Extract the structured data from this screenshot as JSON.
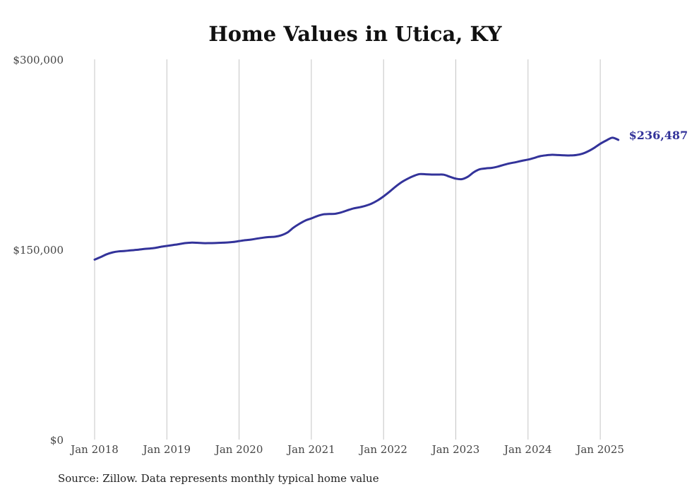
{
  "title": "Home Values in Utica, KY",
  "source": "Source: Zillow. Data represents monthly typical home value",
  "colors": {
    "line": "#33339a",
    "grid": "#c4c4c4",
    "text": "#444444"
  },
  "chart_data": {
    "type": "line",
    "title": "Home Values in Utica, KY",
    "xlabel": "",
    "ylabel": "",
    "ylim": [
      0,
      300000
    ],
    "xlim": [
      "2018-01",
      "2025-12"
    ],
    "y_ticks": [
      0,
      150000,
      300000
    ],
    "y_tick_labels": [
      "$0",
      "$150,000",
      "$300,000"
    ],
    "x_ticks": [
      "2018-01",
      "2019-01",
      "2020-01",
      "2021-01",
      "2022-01",
      "2023-01",
      "2024-01",
      "2025-01"
    ],
    "x_tick_labels": [
      "Jan 2018",
      "Jan 2019",
      "Jan 2020",
      "Jan 2021",
      "Jan 2022",
      "Jan 2023",
      "Jan 2024",
      "Jan 2025"
    ],
    "grid": "vertical",
    "end_label": "$236,487",
    "series": [
      {
        "name": "",
        "color": "#33339a",
        "x": [
          "2018-01",
          "2018-02",
          "2018-03",
          "2018-04",
          "2018-05",
          "2018-06",
          "2018-07",
          "2018-08",
          "2018-09",
          "2018-10",
          "2018-11",
          "2018-12",
          "2019-01",
          "2019-02",
          "2019-03",
          "2019-04",
          "2019-05",
          "2019-06",
          "2019-07",
          "2019-08",
          "2019-09",
          "2019-10",
          "2019-11",
          "2019-12",
          "2020-01",
          "2020-02",
          "2020-03",
          "2020-04",
          "2020-05",
          "2020-06",
          "2020-07",
          "2020-08",
          "2020-09",
          "2020-10",
          "2020-11",
          "2020-12",
          "2021-01",
          "2021-02",
          "2021-03",
          "2021-04",
          "2021-05",
          "2021-06",
          "2021-07",
          "2021-08",
          "2021-09",
          "2021-10",
          "2021-11",
          "2021-12",
          "2022-01",
          "2022-02",
          "2022-03",
          "2022-04",
          "2022-05",
          "2022-06",
          "2022-07",
          "2022-08",
          "2022-09",
          "2022-10",
          "2022-11",
          "2022-12",
          "2023-01",
          "2023-02",
          "2023-03",
          "2023-04",
          "2023-05",
          "2023-06",
          "2023-07",
          "2023-08",
          "2023-09",
          "2023-10",
          "2023-11",
          "2023-12",
          "2024-01",
          "2024-02",
          "2024-03",
          "2024-04",
          "2024-05",
          "2024-06",
          "2024-07",
          "2024-08",
          "2024-09",
          "2024-10",
          "2024-11",
          "2024-12",
          "2025-01",
          "2025-02",
          "2025-03",
          "2025-04"
        ],
        "values": [
          142000,
          144000,
          146200,
          147700,
          148500,
          148800,
          149300,
          149700,
          150300,
          150700,
          151200,
          152100,
          152800,
          153500,
          154200,
          155000,
          155400,
          155300,
          155000,
          155000,
          155100,
          155300,
          155500,
          155900,
          156600,
          157300,
          157800,
          158600,
          159300,
          159800,
          160100,
          161200,
          163300,
          167100,
          170200,
          172800,
          174500,
          176400,
          177700,
          178000,
          178200,
          179300,
          180900,
          182400,
          183300,
          184500,
          186200,
          188700,
          191900,
          195600,
          199600,
          203100,
          205800,
          208000,
          209500,
          209300,
          209100,
          209100,
          209000,
          207400,
          205900,
          205500,
          207400,
          211000,
          213300,
          214000,
          214400,
          215400,
          216800,
          218000,
          218900,
          220000,
          220900,
          222200,
          223600,
          224300,
          224700,
          224500,
          224300,
          224200,
          224500,
          225500,
          227500,
          230200,
          233400,
          236000,
          238200,
          236487
        ]
      }
    ]
  }
}
